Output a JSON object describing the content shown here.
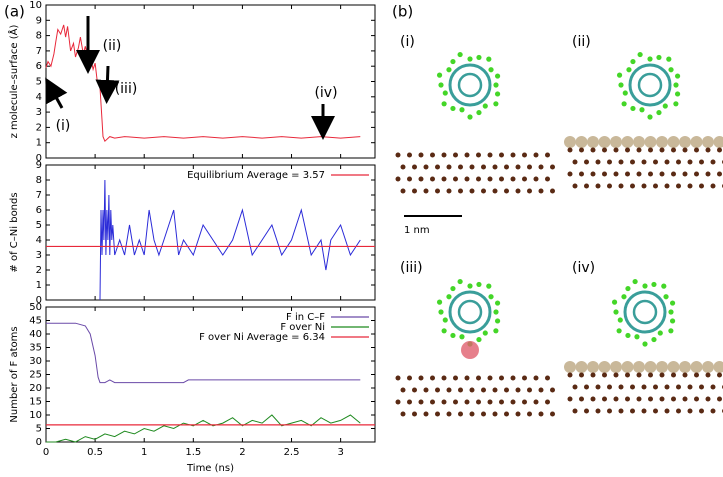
{
  "panels": {
    "a_label": "(a)",
    "b_label": "(b)",
    "images": [
      "(i)",
      "(ii)",
      "(iii)",
      "(iv)"
    ],
    "scale_bar": "1 nm"
  },
  "chart_data": [
    {
      "type": "line",
      "ylabel": "z molecule–surface (Å)",
      "color": "#e8283a",
      "x": [
        0,
        0.02,
        0.05,
        0.08,
        0.1,
        0.12,
        0.15,
        0.18,
        0.2,
        0.22,
        0.25,
        0.28,
        0.3,
        0.33,
        0.35,
        0.38,
        0.4,
        0.43,
        0.45,
        0.48,
        0.5,
        0.52,
        0.55,
        0.57,
        0.58,
        0.6,
        0.65,
        0.7,
        0.8,
        1.0,
        1.2,
        1.4,
        1.6,
        1.8,
        2.0,
        2.2,
        2.4,
        2.6,
        2.8,
        3.0,
        3.2
      ],
      "values": [
        5.9,
        6.3,
        6.0,
        6.8,
        7.6,
        8.4,
        8.1,
        8.7,
        7.9,
        8.6,
        7.0,
        7.5,
        6.6,
        7.2,
        7.9,
        6.8,
        7.3,
        6.5,
        6.7,
        5.8,
        6.2,
        5.1,
        4.6,
        2.5,
        1.4,
        1.1,
        1.4,
        1.3,
        1.4,
        1.3,
        1.4,
        1.3,
        1.4,
        1.3,
        1.4,
        1.3,
        1.4,
        1.3,
        1.4,
        1.3,
        1.4
      ],
      "annotations": [
        "(i)",
        "(ii)",
        "(iii)",
        "(iv)"
      ],
      "xlim": [
        0,
        3.35
      ],
      "xticks": [
        0,
        0.5,
        1,
        1.5,
        2,
        2.5,
        3
      ],
      "show_xtick_labels": false,
      "ylim": [
        0,
        10
      ],
      "yticks": [
        0,
        1,
        2,
        3,
        4,
        5,
        6,
        7,
        8,
        9,
        10
      ]
    },
    {
      "type": "line",
      "ylabel": "# of C–Ni bonds",
      "color": "#2b2bd8",
      "x": [
        0.55,
        0.56,
        0.57,
        0.58,
        0.59,
        0.6,
        0.61,
        0.62,
        0.63,
        0.64,
        0.65,
        0.66,
        0.67,
        0.68,
        0.7,
        0.75,
        0.8,
        0.85,
        0.9,
        0.95,
        1.0,
        1.05,
        1.1,
        1.15,
        1.2,
        1.3,
        1.35,
        1.4,
        1.5,
        1.6,
        1.7,
        1.8,
        1.9,
        2.0,
        2.1,
        2.2,
        2.3,
        2.4,
        2.5,
        2.6,
        2.7,
        2.8,
        2.85,
        2.9,
        3.0,
        3.1,
        3.2
      ],
      "values": [
        0,
        6,
        3,
        6,
        4,
        8,
        3,
        6,
        4,
        7,
        3,
        6,
        4,
        5,
        3,
        4,
        3,
        5,
        3,
        4,
        3,
        6,
        4,
        3,
        4,
        6,
        3,
        4,
        3,
        5,
        4,
        3,
        4,
        6,
        3,
        4,
        5,
        3,
        4,
        6,
        3,
        4,
        2,
        4,
        5,
        3,
        4
      ],
      "reference_lines": [
        {
          "name": "Equilibrium Average = 3.57",
          "color": "#e8283a",
          "value": 3.57
        }
      ],
      "xlim": [
        0,
        3.35
      ],
      "xticks": [
        0,
        0.5,
        1,
        1.5,
        2,
        2.5,
        3
      ],
      "show_xtick_labels": false,
      "ylim": [
        0,
        9
      ],
      "yticks": [
        0,
        1,
        2,
        3,
        4,
        5,
        6,
        7,
        8,
        9
      ]
    },
    {
      "type": "line",
      "ylabel": "Number of F atoms",
      "xlabel": "Time (ns)",
      "series": [
        {
          "name": "F in C–F",
          "color": "#6a4aa8",
          "x": [
            0,
            0.1,
            0.2,
            0.3,
            0.4,
            0.45,
            0.5,
            0.53,
            0.55,
            0.6,
            0.65,
            0.7,
            1.0,
            1.4,
            1.45,
            2.0,
            2.5,
            3.0,
            3.2
          ],
          "values": [
            44,
            44,
            44,
            44,
            43,
            40,
            32,
            24,
            22,
            22,
            23,
            22,
            22,
            22,
            23,
            23,
            23,
            23,
            23
          ]
        },
        {
          "name": "F over Ni",
          "color": "#1f8a1f",
          "x": [
            0,
            0.1,
            0.2,
            0.3,
            0.4,
            0.5,
            0.6,
            0.7,
            0.8,
            0.9,
            1.0,
            1.1,
            1.2,
            1.3,
            1.4,
            1.5,
            1.6,
            1.7,
            1.8,
            1.9,
            2.0,
            2.1,
            2.2,
            2.3,
            2.4,
            2.5,
            2.6,
            2.7,
            2.8,
            2.9,
            3.0,
            3.1,
            3.2
          ],
          "values": [
            0,
            0,
            1,
            0,
            2,
            1,
            3,
            2,
            4,
            3,
            5,
            4,
            6,
            5,
            7,
            6,
            8,
            6,
            7,
            9,
            6,
            8,
            7,
            10,
            6,
            7,
            8,
            6,
            9,
            7,
            8,
            10,
            7
          ]
        }
      ],
      "reference_lines": [
        {
          "name": "F over Ni Average = 6.34",
          "color": "#e8283a",
          "value": 6.34
        }
      ],
      "xlim": [
        0,
        3.35
      ],
      "xticks": [
        0,
        0.5,
        1,
        1.5,
        2,
        2.5,
        3
      ],
      "show_xtick_labels": true,
      "ylim": [
        0,
        50
      ],
      "yticks": [
        0,
        5,
        10,
        15,
        20,
        25,
        30,
        35,
        40,
        45,
        50
      ]
    }
  ]
}
